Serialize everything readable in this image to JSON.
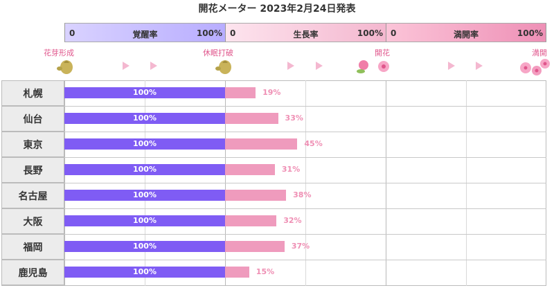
{
  "title": "開花メーター 2023年2月24日発表",
  "phases": [
    {
      "start": "0",
      "name": "覚醒率",
      "end": "100%"
    },
    {
      "start": "0",
      "name": "生長率",
      "end": "100%"
    },
    {
      "start": "0",
      "name": "満開率",
      "end": "100%"
    }
  ],
  "milestones": [
    "花芽形成",
    "休眠打破",
    "開花",
    "満開"
  ],
  "colors": {
    "dormancy_bar": "#7f5cf4",
    "growth_bar": "#ef9bbd",
    "label_text": "#e0568c"
  },
  "chart_data": {
    "type": "bar",
    "categories": [
      "札幌",
      "仙台",
      "東京",
      "長野",
      "名古屋",
      "大阪",
      "福岡",
      "鹿児島"
    ],
    "series": [
      {
        "name": "覚醒率",
        "values": [
          100,
          100,
          100,
          100,
          100,
          100,
          100,
          100
        ],
        "labels": [
          "100%",
          "100%",
          "100%",
          "100%",
          "100%",
          "100%",
          "100%",
          "100%"
        ]
      },
      {
        "name": "生長率",
        "values": [
          19,
          33,
          45,
          31,
          38,
          32,
          37,
          15
        ],
        "labels": [
          "19%",
          "33%",
          "45%",
          "31%",
          "38%",
          "32%",
          "37%",
          "15%"
        ]
      }
    ],
    "xlim": [
      0,
      300
    ]
  }
}
